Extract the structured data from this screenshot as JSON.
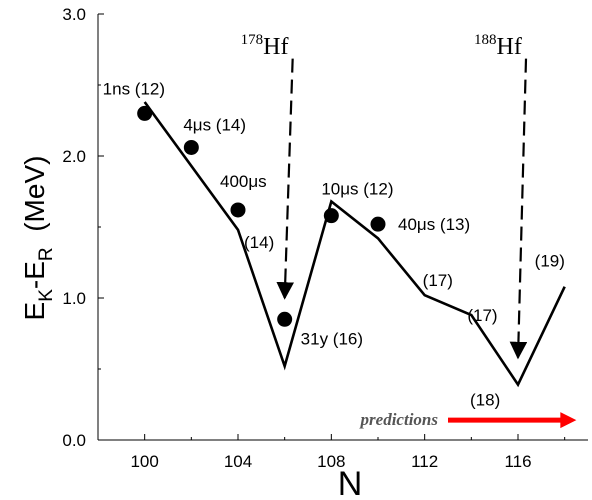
{
  "chart_data": {
    "type": "line",
    "xlabel": "N",
    "ylabel_parts": {
      "e1": "E",
      "s1": "K",
      "mid": "-E",
      "s2": "R",
      "unit": "(MeV)"
    },
    "xlim": [
      98,
      119
    ],
    "ylim": [
      0.0,
      3.0
    ],
    "x_ticks": [
      100,
      104,
      108,
      112,
      116
    ],
    "y_ticks": [
      {
        "value": 0.0,
        "label": "0.0"
      },
      {
        "value": 1.0,
        "label": "1.0"
      },
      {
        "value": 2.0,
        "label": "2.0"
      },
      {
        "value": 3.0,
        "label": "3.0"
      }
    ],
    "series": [
      {
        "style": "line",
        "x": [
          100,
          104,
          106,
          108,
          110,
          112,
          114,
          116,
          118
        ],
        "y": [
          2.38,
          1.48,
          0.52,
          1.68,
          1.42,
          1.02,
          0.88,
          0.39,
          1.08
        ]
      },
      {
        "style": "markers",
        "x": [
          100,
          102,
          104,
          106,
          108,
          110
        ],
        "y": [
          2.3,
          2.06,
          1.62,
          0.85,
          1.58,
          1.52
        ]
      }
    ],
    "annotations": [
      {
        "text": "1ns (12)",
        "x": 100,
        "y": 2.3
      },
      {
        "text": "4μs (14)",
        "x": 102,
        "y": 2.06
      },
      {
        "text": "400μs",
        "x": 104,
        "y": 1.62
      },
      {
        "text": "(14)",
        "x": 104,
        "y": 1.48
      },
      {
        "text": "31y (16)",
        "x": 106,
        "y": 0.85
      },
      {
        "text": "10μs (12)",
        "x": 108,
        "y": 1.58
      },
      {
        "text": "40μs (13)",
        "x": 110,
        "y": 1.52
      },
      {
        "text": "(17)",
        "x": 112,
        "y": 1.02
      },
      {
        "text": "(17)",
        "x": 114,
        "y": 0.88
      },
      {
        "text": "(18)",
        "x": 116,
        "y": 0.39
      },
      {
        "text": "(19)",
        "x": 118,
        "y": 1.08
      }
    ],
    "isotope_labels": [
      {
        "mass": "178",
        "element": "Hf",
        "x": 106,
        "y_from": 2.7,
        "y_to": 1.0
      },
      {
        "mass": "188",
        "element": "Hf",
        "x": 116,
        "y_from": 2.7,
        "y_to": 0.58
      }
    ],
    "predictions": {
      "text": "predictions",
      "x_from": 113,
      "x_to": 118.5,
      "y": 0.14
    },
    "colors": {
      "line": "#000000",
      "markers": "#000000",
      "arrow": "#ff0000"
    },
    "grid": false
  }
}
